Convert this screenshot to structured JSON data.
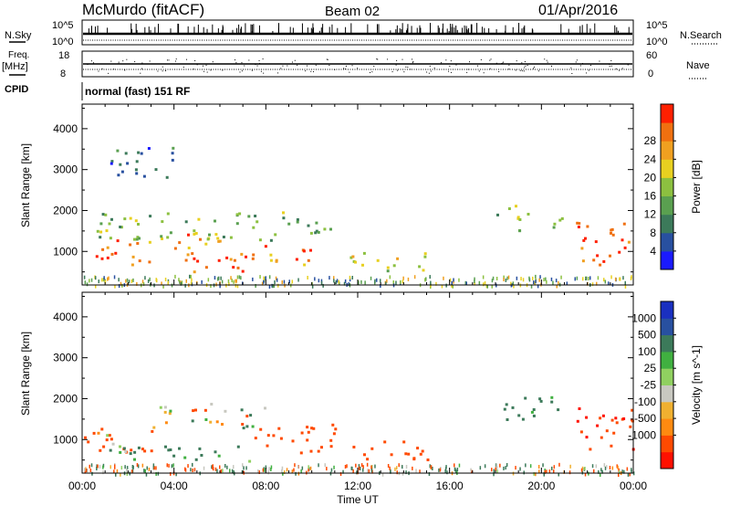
{
  "header": {
    "station": "McMurdo (fitACF)",
    "beam": "Beam 02",
    "date": "01/Apr/2016"
  },
  "side_labels": {
    "nsky": "N.Sky",
    "freq": "Freq.",
    "freq_unit": "[MHz]",
    "cpid": "CPID",
    "nsearch": "N.Search",
    "nave": "Nave"
  },
  "noise_axis": {
    "top": "10^5",
    "bottom": "10^0"
  },
  "freq_axis": {
    "left_top": "18",
    "left_bottom": "8",
    "right_top": "60",
    "right_bottom": "0"
  },
  "mode_text": "normal (fast) 151 RF",
  "colors": {
    "power_scale": [
      "#1a1aff",
      "#2850a0",
      "#3c7a5a",
      "#5aa050",
      "#8cc040",
      "#e8d020",
      "#f0a020",
      "#f07010",
      "#ff2000"
    ],
    "velocity_scale": [
      "#ff1000",
      "#ff4a00",
      "#ff8a10",
      "#f0b030",
      "#c8c8c0",
      "#90d060",
      "#40b040",
      "#3c7a5a",
      "#2850a0",
      "#1a30c0"
    ]
  },
  "chart_data": [
    {
      "type": "heatmap",
      "quantity": "power",
      "ylabel": "Slant Range [km]",
      "xlabel": "Time UT",
      "x_ticks": [
        "00:00",
        "04:00",
        "08:00",
        "12:00",
        "16:00",
        "20:00",
        "00:00"
      ],
      "x_hours": [
        0,
        4,
        8,
        12,
        16,
        20,
        24
      ],
      "y_ticks": [
        1000,
        2000,
        3000,
        4000
      ],
      "ylim": [
        180,
        4600
      ],
      "colorbar": {
        "label": "Power [dB]",
        "range": [
          0,
          32
        ],
        "ticks": [
          "4",
          "8",
          "12",
          "16",
          "20",
          "24",
          "28"
        ]
      },
      "regions": [
        {
          "t0": 0.0,
          "t1": 3.0,
          "r0": 700,
          "r1": 1300,
          "value": 26
        },
        {
          "t0": 3.5,
          "t1": 6.0,
          "r0": 900,
          "r1": 1500,
          "value": 24
        },
        {
          "t0": 4.0,
          "t1": 7.5,
          "r0": 500,
          "r1": 900,
          "value": 28
        },
        {
          "t0": 6.5,
          "t1": 10.0,
          "r0": 700,
          "r1": 1200,
          "value": 26
        },
        {
          "t0": 0.5,
          "t1": 11.0,
          "r0": 1300,
          "r1": 2000,
          "value": 14
        },
        {
          "t0": 11.5,
          "t1": 15.0,
          "r0": 500,
          "r1": 1000,
          "value": 18
        },
        {
          "t0": 18.0,
          "t1": 19.5,
          "r0": 1500,
          "r1": 2200,
          "value": 16
        },
        {
          "t0": 20.0,
          "t1": 21.0,
          "r0": 1500,
          "r1": 2000,
          "value": 14
        },
        {
          "t0": 21.5,
          "t1": 24.0,
          "r0": 700,
          "r1": 1800,
          "value": 28
        },
        {
          "t0": 1.0,
          "t1": 4.0,
          "r0": 2800,
          "r1": 3600,
          "value": 6
        }
      ]
    },
    {
      "type": "heatmap",
      "quantity": "velocity",
      "ylabel": "Slant Range [km]",
      "xlabel": "Time UT",
      "x_ticks": [
        "00:00",
        "04:00",
        "08:00",
        "12:00",
        "16:00",
        "20:00",
        "00:00"
      ],
      "x_hours": [
        0,
        4,
        8,
        12,
        16,
        20,
        24
      ],
      "y_ticks": [
        1000,
        2000,
        3000,
        4000
      ],
      "ylim": [
        180,
        4600
      ],
      "colorbar": {
        "label": "Velocity [m s^-1]",
        "ticks": [
          "1000",
          "500",
          "100",
          "25",
          "-25",
          "-100",
          "-500",
          "-1000"
        ]
      },
      "regions": [
        {
          "t0": 0.0,
          "t1": 3.0,
          "r0": 700,
          "r1": 1300,
          "value": -300
        },
        {
          "t0": 1.0,
          "t1": 7.5,
          "r0": 500,
          "r1": 900,
          "value": 150
        },
        {
          "t0": 3.0,
          "t1": 8.0,
          "r0": 1300,
          "r1": 1900,
          "value": 0
        },
        {
          "t0": 7.5,
          "t1": 11.0,
          "r0": 700,
          "r1": 1500,
          "value": -300
        },
        {
          "t0": 11.5,
          "t1": 15.0,
          "r0": 500,
          "r1": 1000,
          "value": -300
        },
        {
          "t0": 18.0,
          "t1": 21.0,
          "r0": 1500,
          "r1": 2100,
          "value": 200
        },
        {
          "t0": 21.5,
          "t1": 24.0,
          "r0": 700,
          "r1": 1800,
          "value": -400
        },
        {
          "t0": 0.5,
          "t1": 2.0,
          "r0": 900,
          "r1": 1200,
          "value": -100
        }
      ]
    }
  ]
}
